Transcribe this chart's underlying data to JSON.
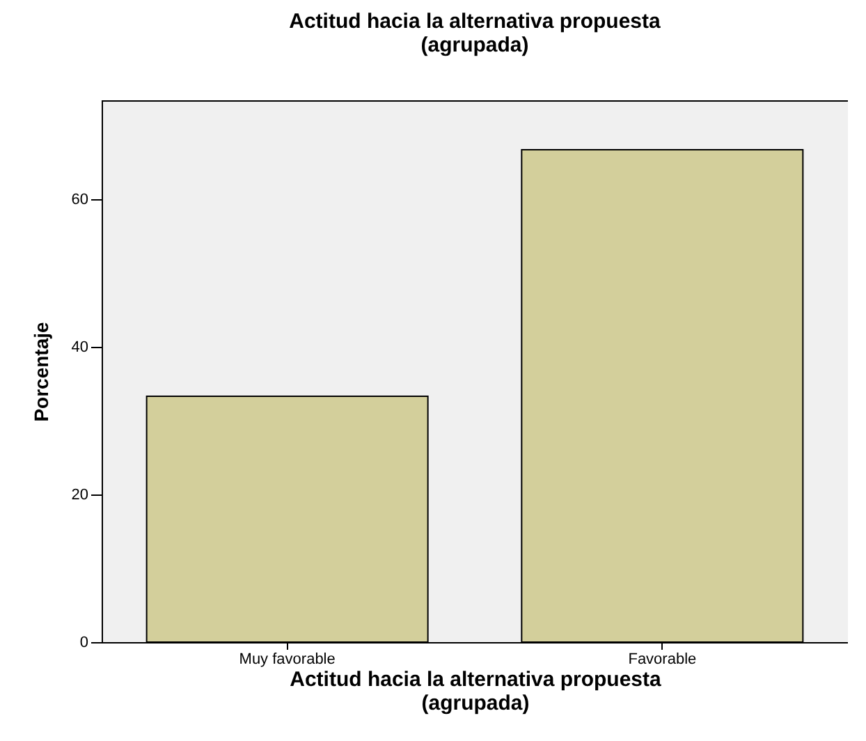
{
  "chart_data": {
    "type": "bar",
    "title": "Actitud hacia la alternativa propuesta\n(agrupada)",
    "xlabel": "Actitud hacia la alternativa propuesta\n(agrupada)",
    "ylabel": "Porcentaje",
    "categories": [
      "Muy favorable",
      "Favorable"
    ],
    "values": [
      33.3,
      66.7
    ],
    "color": "#d3cf9b",
    "ylim": [
      0,
      73.4
    ],
    "yticks": [
      0,
      20,
      40,
      60
    ],
    "grid": false
  }
}
